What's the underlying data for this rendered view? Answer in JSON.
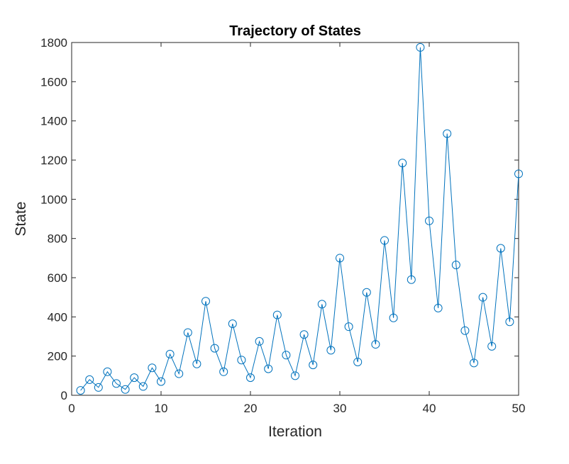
{
  "chart_data": {
    "type": "line",
    "title": "Trajectory of States",
    "xlabel": "Iteration",
    "ylabel": "State",
    "xlim": [
      0,
      50
    ],
    "ylim": [
      0,
      1800
    ],
    "xticks": [
      "0",
      "10",
      "20",
      "30",
      "40",
      "50"
    ],
    "yticks": [
      "0",
      "200",
      "400",
      "600",
      "800",
      "1000",
      "1200",
      "1400",
      "1600",
      "1800"
    ],
    "grid": false,
    "marker": "circle",
    "line_color": "#0072BD",
    "x": [
      1,
      2,
      3,
      4,
      5,
      6,
      7,
      8,
      9,
      10,
      11,
      12,
      13,
      14,
      15,
      16,
      17,
      18,
      19,
      20,
      21,
      22,
      23,
      24,
      25,
      26,
      27,
      28,
      29,
      30,
      31,
      32,
      33,
      34,
      35,
      36,
      37,
      38,
      39,
      40,
      41,
      42,
      43,
      44,
      45,
      46,
      47,
      48,
      49,
      50
    ],
    "y": [
      25,
      80,
      40,
      120,
      60,
      30,
      90,
      45,
      140,
      70,
      210,
      110,
      320,
      160,
      480,
      240,
      120,
      365,
      180,
      90,
      275,
      135,
      410,
      205,
      100,
      310,
      155,
      465,
      230,
      700,
      350,
      170,
      525,
      260,
      790,
      395,
      1185,
      590,
      1775,
      890,
      445,
      1335,
      665,
      330,
      165,
      500,
      250,
      750,
      375,
      1130
    ]
  }
}
